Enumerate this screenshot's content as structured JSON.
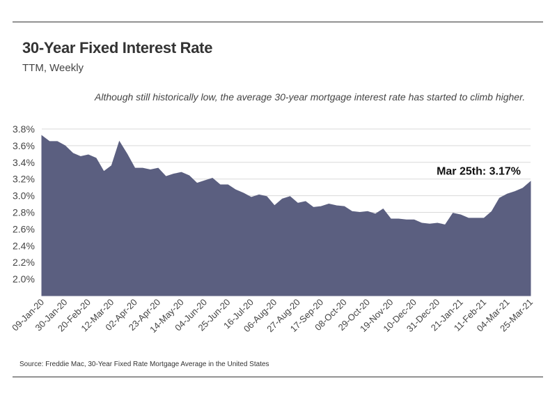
{
  "header": {
    "title": "30-Year Fixed Interest Rate",
    "subtitle": "TTM, Weekly"
  },
  "annotation_text": "Although still historically low, the average 30-year mortgage interest rate has started to climb higher.",
  "source_text": "Source:  Freddie Mac, 30-Year Fixed Rate Mortgage Average in the United States",
  "colors": {
    "area": "#5b5f80",
    "grid": "#d9d9d9",
    "rule": "#333333"
  },
  "chart_data": {
    "type": "area",
    "title": "30-Year Fixed Interest Rate",
    "subtitle": "TTM, Weekly",
    "xlabel": "",
    "ylabel": "",
    "ylim": [
      1.8,
      3.8
    ],
    "yticks": [
      "3.8%",
      "3.6%",
      "3.4%",
      "3.2%",
      "3.0%",
      "2.8%",
      "2.6%",
      "2.4%",
      "2.2%",
      "2.0%"
    ],
    "ytick_values": [
      3.8,
      3.6,
      3.4,
      3.2,
      3.0,
      2.8,
      2.6,
      2.4,
      2.2,
      2.0
    ],
    "grid": true,
    "x_tick_labels": [
      "09-Jan-20",
      "30-Jan-20",
      "20-Feb-20",
      "12-Mar-20",
      "02-Apr-20",
      "23-Apr-20",
      "14-May-20",
      "04-Jun-20",
      "25-Jun-20",
      "16-Jul-20",
      "06-Aug-20",
      "27-Aug-20",
      "17-Sep-20",
      "08-Oct-20",
      "29-Oct-20",
      "19-Nov-20",
      "10-Dec-20",
      "31-Dec-20",
      "21-Jan-21",
      "11-Feb-21",
      "04-Mar-21",
      "25-Mar-21"
    ],
    "x": [
      "09-Jan-20",
      "16-Jan-20",
      "23-Jan-20",
      "30-Jan-20",
      "06-Feb-20",
      "13-Feb-20",
      "20-Feb-20",
      "27-Feb-20",
      "05-Mar-20",
      "12-Mar-20",
      "19-Mar-20",
      "26-Mar-20",
      "02-Apr-20",
      "09-Apr-20",
      "16-Apr-20",
      "23-Apr-20",
      "30-Apr-20",
      "07-May-20",
      "14-May-20",
      "21-May-20",
      "28-May-20",
      "04-Jun-20",
      "11-Jun-20",
      "18-Jun-20",
      "25-Jun-20",
      "02-Jul-20",
      "09-Jul-20",
      "16-Jul-20",
      "23-Jul-20",
      "30-Jul-20",
      "06-Aug-20",
      "13-Aug-20",
      "20-Aug-20",
      "27-Aug-20",
      "03-Sep-20",
      "10-Sep-20",
      "17-Sep-20",
      "24-Sep-20",
      "01-Oct-20",
      "08-Oct-20",
      "15-Oct-20",
      "22-Oct-20",
      "29-Oct-20",
      "05-Nov-20",
      "12-Nov-20",
      "19-Nov-20",
      "26-Nov-20",
      "03-Dec-20",
      "10-Dec-20",
      "17-Dec-20",
      "24-Dec-20",
      "31-Dec-20",
      "07-Jan-21",
      "14-Jan-21",
      "21-Jan-21",
      "28-Jan-21",
      "04-Feb-21",
      "11-Feb-21",
      "18-Feb-21",
      "25-Feb-21",
      "04-Mar-21",
      "11-Mar-21",
      "18-Mar-21",
      "25-Mar-21"
    ],
    "series": [
      {
        "values": [
          3.72,
          3.65,
          3.65,
          3.6,
          3.51,
          3.47,
          3.49,
          3.45,
          3.29,
          3.36,
          3.65,
          3.5,
          3.33,
          3.33,
          3.31,
          3.33,
          3.23,
          3.26,
          3.28,
          3.24,
          3.15,
          3.18,
          3.21,
          3.13,
          3.13,
          3.07,
          3.03,
          2.98,
          3.01,
          2.99,
          2.88,
          2.96,
          2.99,
          2.91,
          2.93,
          2.86,
          2.87,
          2.9,
          2.88,
          2.87,
          2.81,
          2.8,
          2.81,
          2.78,
          2.84,
          2.72,
          2.72,
          2.71,
          2.71,
          2.67,
          2.66,
          2.67,
          2.65,
          2.79,
          2.77,
          2.73,
          2.73,
          2.73,
          2.81,
          2.97,
          3.02,
          3.05,
          3.09,
          3.17
        ]
      }
    ],
    "callout": {
      "x": "25-Mar-21",
      "text": "Mar 25th: 3.17%"
    }
  }
}
